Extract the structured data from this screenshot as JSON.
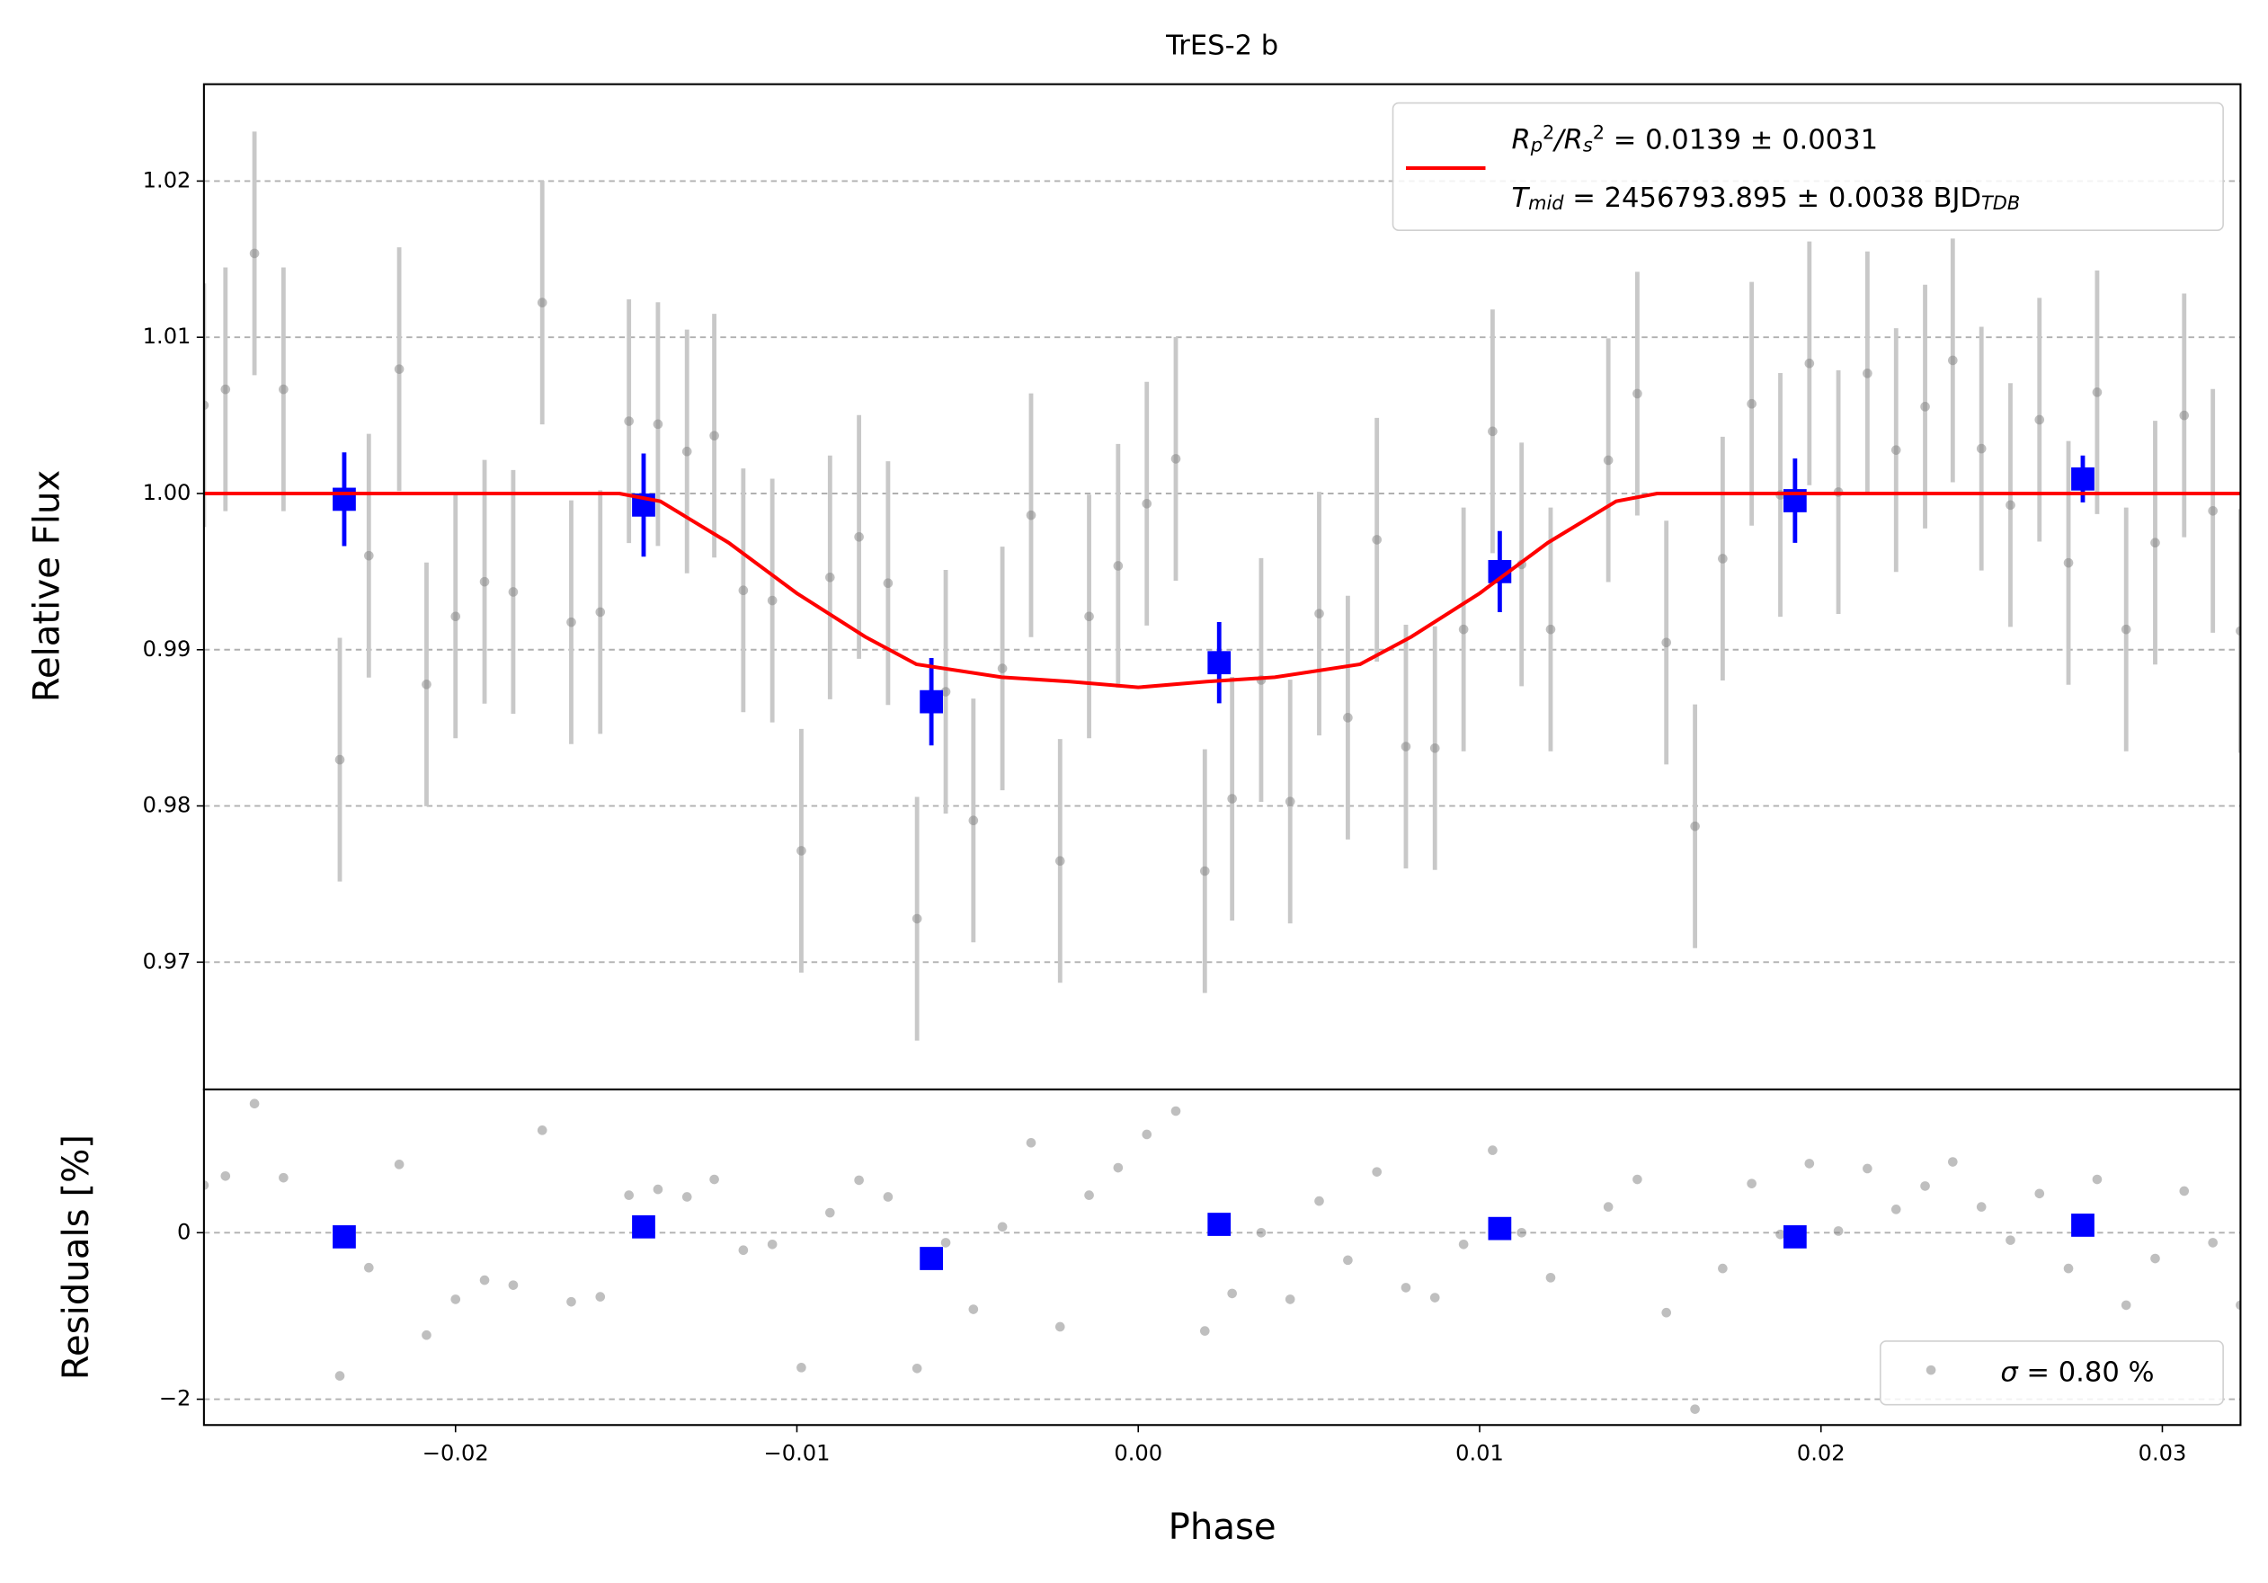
{
  "chart_data": [
    {
      "type": "scatter",
      "title": "TrES-2 b",
      "ylabel": "Relative Flux",
      "xlim": [
        -0.02737,
        0.03229
      ],
      "ylim": [
        0.96185,
        1.0262
      ],
      "yticks": [
        0.97,
        0.98,
        0.99,
        {
          "value": 1.0,
          "label": "1.00"
        },
        1.01,
        1.02
      ],
      "grid": true,
      "legend": "upper right",
      "series": [
        {
          "color": "#808080",
          "error": 0.0078,
          "x": [
            -0.02737,
            -0.02674,
            -0.02589,
            -0.02504,
            -0.02339,
            -0.02254,
            -0.02165,
            -0.02085,
            -0.02,
            -0.01915,
            -0.01831,
            -0.01746,
            -0.01661,
            -0.01576,
            -0.01492,
            -0.01407,
            -0.01322,
            -0.01242,
            -0.01157,
            -0.01072,
            -0.00987,
            -0.00903,
            -0.00818,
            -0.00733,
            -0.00648,
            -0.00564,
            -0.00483,
            -0.00398,
            -0.00314,
            -0.00229,
            -0.00144,
            -0.00059,
            0.00025,
            0.0011,
            0.00195,
            0.00275,
            0.0036,
            0.00445,
            0.0053,
            0.00614,
            0.00699,
            0.00784,
            0.00869,
            0.00953,
            0.01038,
            0.01123,
            0.01208,
            0.01377,
            0.01462,
            0.01547,
            0.01631,
            0.01712,
            0.01797,
            0.01881,
            0.01966,
            0.02051,
            0.02136,
            0.0222,
            0.02305,
            0.02386,
            0.0247,
            0.02555,
            0.0264,
            0.02725,
            0.02809,
            0.02894,
            0.02979,
            0.03064,
            0.03148,
            0.03229
          ],
          "values": [
            1.00565,
            1.00667,
            1.01537,
            1.00667,
            0.98296,
            0.99602,
            1.00796,
            0.98778,
            0.99213,
            0.99435,
            0.9937,
            1.01222,
            0.99176,
            0.99241,
            1.00463,
            1.00444,
            1.00269,
            1.0037,
            0.9938,
            0.99315,
            0.97713,
            0.99463,
            0.99722,
            0.99426,
            0.97278,
            0.98731,
            0.97907,
            0.9888,
            0.99861,
            0.97648,
            0.99213,
            0.99537,
            0.99935,
            1.00222,
            0.97583,
            0.98046,
            0.98806,
            0.98028,
            0.99231,
            0.98565,
            0.99704,
            0.9838,
            0.9837,
            0.9913,
            1.00398,
            0.99546,
            0.9913,
            1.00213,
            1.00639,
            0.99046,
            0.9787,
            0.99583,
            1.00574,
            0.99991,
            1.00833,
            1.00009,
            1.00769,
            1.00278,
            1.00556,
            1.00852,
            1.00287,
            0.99926,
            1.00472,
            0.99556,
            1.00648,
            0.9913,
            0.99685,
            1.005,
            0.99889,
            0.9912
          ]
        },
        {
          "color": "#0000ff",
          "x": [
            -0.02326,
            -0.01449,
            -0.00606,
            0.00237,
            0.01059,
            0.01924,
            0.02767
          ],
          "values": [
            0.99963,
            0.99926,
            0.98667,
            0.98917,
            0.995,
            0.99954,
            1.00093
          ],
          "errors": [
            0.003,
            0.0033,
            0.0028,
            0.0026,
            0.0026,
            0.0027,
            0.0015
          ]
        },
        {
          "color": "#ff0000",
          "line": true,
          "name": [
            [
              "R",
              "p",
              "2",
              "/R",
              "s",
              "2",
              " = 0.0139 ± 0.0031"
            ],
            [
              "T",
              "mid",
              " = 2456793.895 ± 0.0038 BJD",
              "TDB"
            ]
          ],
          "x": [
            -0.02737,
            -0.0152,
            -0.014,
            -0.012,
            -0.01,
            -0.008,
            -0.0065,
            -0.004,
            -0.002,
            0,
            0.002,
            0.004,
            0.0065,
            0.008,
            0.01,
            0.012,
            0.014,
            0.0152,
            0.03229
          ],
          "values": [
            1.0,
            1.0,
            0.9995,
            0.99685,
            0.99361,
            0.99083,
            0.98907,
            0.98824,
            0.98796,
            0.98759,
            0.98796,
            0.98824,
            0.98907,
            0.99083,
            0.99361,
            0.99685,
            0.9995,
            1.0,
            1.0
          ]
        }
      ]
    },
    {
      "type": "scatter",
      "ylabel": "Residuals [%]",
      "xlabel": "Phase",
      "xlim": [
        -0.02737,
        0.03229
      ],
      "ylim": [
        -2.31,
        1.72
      ],
      "xticks": [
        {
          "value": -0.02,
          "label": "−0.02"
        },
        {
          "value": -0.01,
          "label": "−0.01"
        },
        {
          "value": 0,
          "label": "0.00"
        },
        0.01,
        0.02,
        0.03
      ],
      "yticks": [
        {
          "value": -2,
          "label": "−2"
        },
        0
      ],
      "grid": true,
      "legend": "lower right",
      "series": [
        {
          "color": "#808080",
          "name": [
            "σ",
            " = 0.80 %"
          ],
          "x": [
            -0.02737,
            -0.02674,
            -0.02589,
            -0.02504,
            -0.02339,
            -0.02254,
            -0.02165,
            -0.02085,
            -0.02,
            -0.01915,
            -0.01831,
            -0.01746,
            -0.01661,
            -0.01576,
            -0.01492,
            -0.01407,
            -0.01322,
            -0.01242,
            -0.01157,
            -0.01072,
            -0.00987,
            -0.00903,
            -0.00818,
            -0.00733,
            -0.00648,
            -0.00564,
            -0.00483,
            -0.00398,
            -0.00314,
            -0.00229,
            -0.00144,
            -0.00059,
            0.00025,
            0.0011,
            0.00195,
            0.00275,
            0.0036,
            0.00445,
            0.0053,
            0.00614,
            0.00699,
            0.00784,
            0.00869,
            0.00953,
            0.01038,
            0.01123,
            0.01208,
            0.01377,
            0.01462,
            0.01547,
            0.01631,
            0.01712,
            0.01797,
            0.01881,
            0.01966,
            0.02051,
            0.02136,
            0.0222,
            0.02305,
            0.02386,
            0.0247,
            0.02555,
            0.0264,
            0.02725,
            0.02809,
            0.02894,
            0.02979,
            0.03064,
            0.03148,
            0.03229
          ],
          "values": [
            0.57,
            0.68,
            1.55,
            0.66,
            -1.72,
            -0.42,
            0.82,
            -1.23,
            -0.8,
            -0.57,
            -0.63,
            1.23,
            -0.83,
            -0.77,
            0.45,
            0.52,
            0.43,
            0.64,
            -0.21,
            -0.14,
            -1.62,
            0.24,
            0.63,
            0.43,
            -1.63,
            -0.12,
            -0.92,
            0.07,
            1.08,
            -1.13,
            0.45,
            0.78,
            1.18,
            1.46,
            -1.18,
            -0.73,
            0.0,
            -0.8,
            0.38,
            -0.33,
            0.73,
            -0.66,
            -0.78,
            -0.14,
            0.99,
            0.0,
            -0.54,
            0.31,
            0.64,
            -0.96,
            -2.12,
            -0.43,
            0.59,
            -0.02,
            0.83,
            0.02,
            0.77,
            0.28,
            0.56,
            0.85,
            0.31,
            -0.09,
            0.47,
            -0.43,
            0.64,
            -0.87,
            -0.31,
            0.5,
            -0.12,
            -0.87
          ]
        },
        {
          "color": "#0000ff",
          "x": [
            -0.02326,
            -0.01449,
            -0.00606,
            0.00237,
            0.01059,
            0.01924,
            0.02767
          ],
          "values": [
            -0.05,
            0.07,
            -0.31,
            0.1,
            0.05,
            -0.05,
            0.09
          ]
        }
      ]
    }
  ]
}
